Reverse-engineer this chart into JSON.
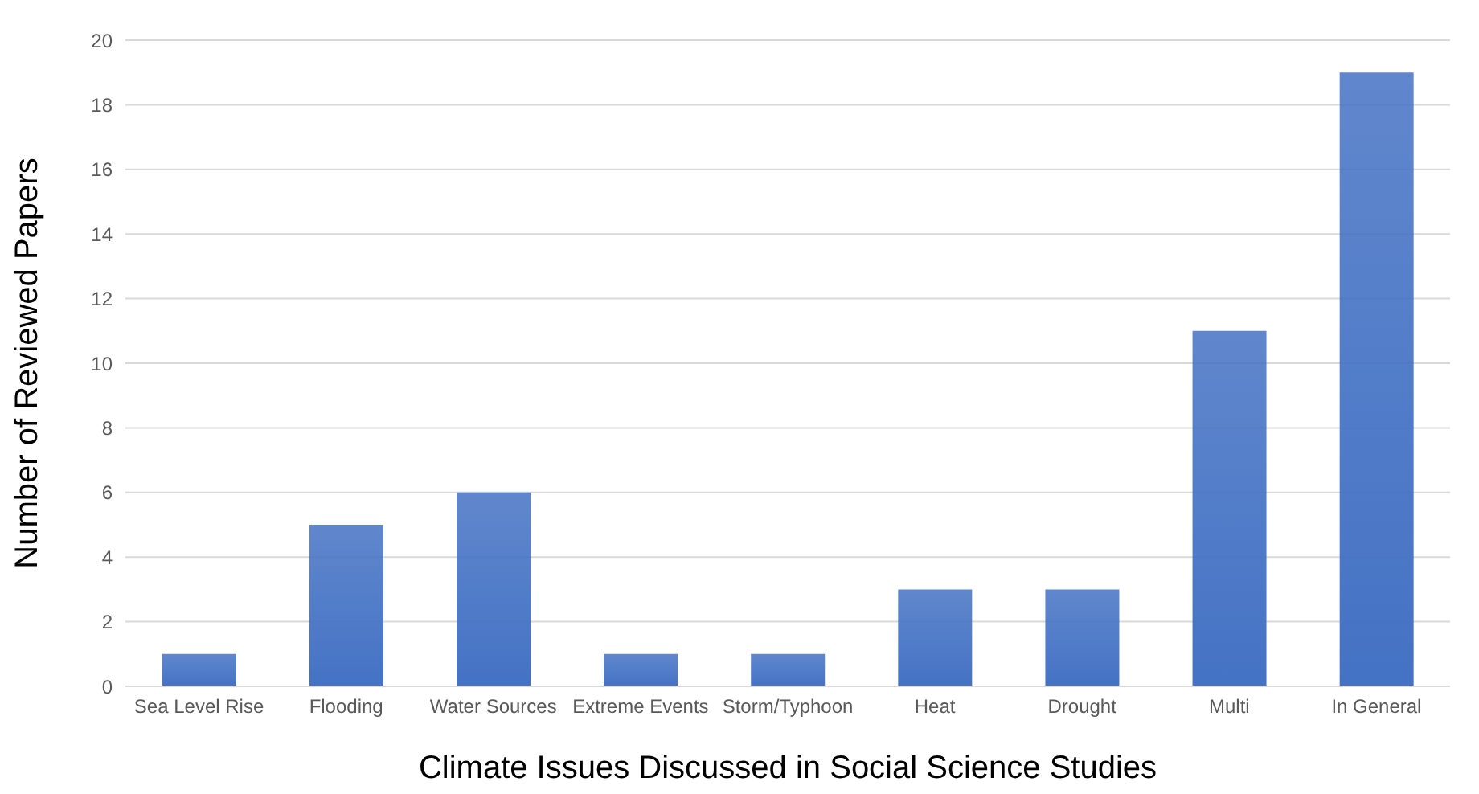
{
  "chart_data": {
    "type": "bar",
    "xlabel": "Climate Issues  Discussed in Social Science Studies",
    "ylabel": "Number of Reviewed Papers",
    "categories": [
      "Sea Level Rise",
      "Flooding",
      "Water Sources",
      "Extreme Events",
      "Storm/Typhoon",
      "Heat",
      "Drought",
      "Multi",
      "In General"
    ],
    "values": [
      1,
      5,
      6,
      1,
      1,
      3,
      3,
      11,
      19
    ],
    "color": "#4472c4",
    "ylim": [
      0,
      20
    ],
    "yticks": [
      0,
      2,
      4,
      6,
      8,
      10,
      12,
      14,
      16,
      18,
      20
    ],
    "grid": "y"
  }
}
